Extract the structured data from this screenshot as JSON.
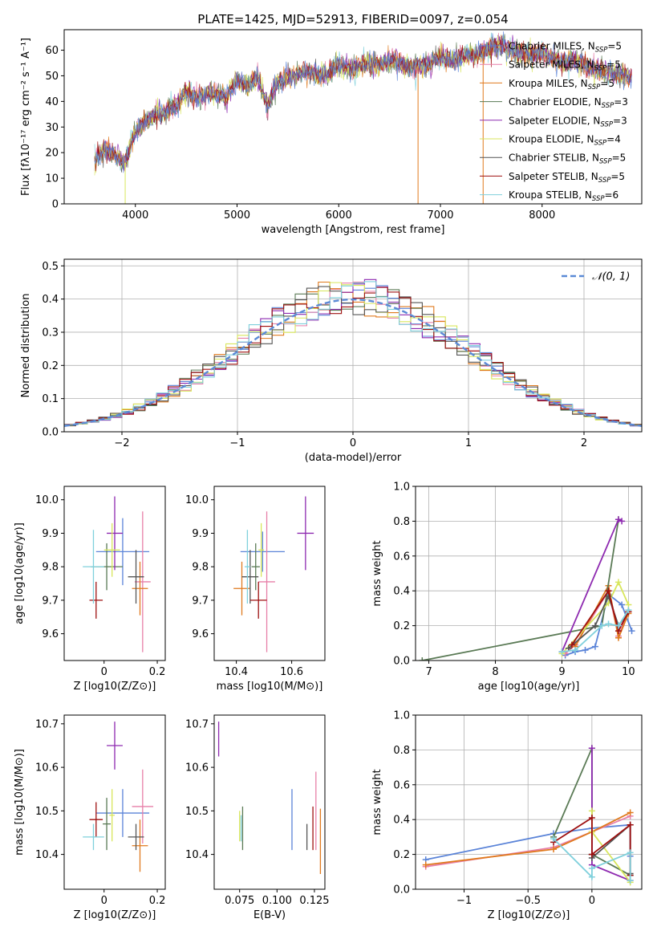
{
  "figure": {
    "title": "PLATE=1425, MJD=52913, FIBERID=0097, z=0.054"
  },
  "colors": {
    "Chabrier MILES": "#5b84d8",
    "Salpeter MILES": "#e77fa8",
    "Kroupa MILES": "#e07a1e",
    "Chabrier ELODIE": "#5a7a55",
    "Salpeter ELODIE": "#8e2ab0",
    "Kroupa ELODIE": "#d8e65c",
    "Chabrier STELIB": "#555555",
    "Salpeter STELIB": "#9e1010",
    "Kroupa STELIB": "#7fd0dc",
    "normal": "#5b8ad6"
  },
  "chart_data": [
    {
      "id": "spectrum",
      "type": "line",
      "xlabel": "wavelength [Angstrom, rest frame]",
      "ylabel": "Flux [fλ10⁻¹⁷ erg cm⁻² s⁻¹ A⁻¹]",
      "xlim": [
        3300,
        8980
      ],
      "ylim": [
        0,
        68
      ],
      "xticks": [
        4000,
        5000,
        6000,
        7000,
        8000
      ],
      "yticks": [
        0,
        10,
        20,
        30,
        40,
        50,
        60
      ],
      "grid": false,
      "legend_position": "top-right",
      "legend": [
        {
          "name": "Chabrier MILES",
          "nssp": "5"
        },
        {
          "name": "Salpeter MILES",
          "nssp": "5"
        },
        {
          "name": "Kroupa MILES",
          "nssp": "5"
        },
        {
          "name": "Chabrier ELODIE",
          "nssp": "3"
        },
        {
          "name": "Salpeter ELODIE",
          "nssp": "3"
        },
        {
          "name": "Kroupa ELODIE",
          "nssp": "4"
        },
        {
          "name": "Chabrier STELIB",
          "nssp": "5"
        },
        {
          "name": "Salpeter STELIB",
          "nssp": "5"
        },
        {
          "name": "Kroupa STELIB",
          "nssp": "6"
        }
      ],
      "x": [
        3600,
        3700,
        3800,
        3900,
        4000,
        4100,
        4200,
        4300,
        4400,
        4500,
        4600,
        4700,
        4800,
        4900,
        5000,
        5100,
        5200,
        5300,
        5400,
        5500,
        5600,
        5700,
        5800,
        5900,
        6000,
        6100,
        6200,
        6300,
        6400,
        6500,
        6600,
        6700,
        6800,
        6900,
        7000,
        7100,
        7200,
        7300,
        7400,
        7500,
        7600,
        7700,
        7800,
        7900,
        8000,
        8100,
        8200,
        8300,
        8400,
        8500,
        8600,
        8700,
        8800,
        8900
      ],
      "y": [
        16,
        22,
        19,
        16,
        28,
        32,
        35,
        36,
        38,
        44,
        41,
        43,
        43,
        42,
        48,
        46,
        50,
        38,
        48,
        49,
        51,
        52,
        50,
        51,
        55,
        53,
        54,
        55,
        54,
        56,
        55,
        53,
        54,
        55,
        57,
        56,
        57,
        58,
        59,
        61,
        62,
        60,
        59,
        58,
        59,
        57,
        55,
        56,
        54,
        53,
        52,
        51,
        50,
        49
      ],
      "sharp_dips": [
        3900,
        6780,
        7420
      ]
    },
    {
      "id": "residuals",
      "type": "bar",
      "xlabel": "(data-model)/error",
      "ylabel": "Normed distribution",
      "xlim": [
        -2.5,
        2.5
      ],
      "ylim": [
        0,
        0.52
      ],
      "xticks": [
        -2,
        -1,
        0,
        1,
        2
      ],
      "yticks": [
        0.0,
        0.1,
        0.2,
        0.3,
        0.4,
        0.5
      ],
      "grid": true,
      "legend_position": "top-right",
      "legend": [
        "𝒩(0, 1)"
      ],
      "bin_width": 0.1,
      "bins": [
        -2.5,
        -2.4,
        -2.3,
        -2.2,
        -2.1,
        -2.0,
        -1.9,
        -1.8,
        -1.7,
        -1.6,
        -1.5,
        -1.4,
        -1.3,
        -1.2,
        -1.1,
        -1.0,
        -0.9,
        -0.8,
        -0.7,
        -0.6,
        -0.5,
        -0.4,
        -0.3,
        -0.2,
        -0.1,
        0.0,
        0.1,
        0.2,
        0.3,
        0.4,
        0.5,
        0.6,
        0.7,
        0.8,
        0.9,
        1.0,
        1.1,
        1.2,
        1.3,
        1.4,
        1.5,
        1.6,
        1.7,
        1.8,
        1.9,
        2.0,
        2.1,
        2.2,
        2.3,
        2.4
      ],
      "normal_curve": {
        "mean": 0,
        "std": 1,
        "label": "N(0,1)"
      }
    },
    {
      "id": "age-vs-Z",
      "type": "scatter",
      "xlabel": "Z [log10(Z/Z⊙)]",
      "ylabel": "age  [log10(age/yr)]",
      "xlim": [
        -0.15,
        0.23
      ],
      "ylim": [
        9.52,
        10.04
      ],
      "xticks": [
        0.0,
        0.2
      ],
      "yticks": [
        9.6,
        9.7,
        9.8,
        9.9,
        10.0
      ],
      "grid": false,
      "points": [
        {
          "series": "Chabrier MILES",
          "x": 0.07,
          "y": 9.845,
          "xerr": 0.2,
          "yerr": 0.1
        },
        {
          "series": "Salpeter MILES",
          "x": 0.145,
          "y": 9.755,
          "xerr": 0.06,
          "yerr": 0.21
        },
        {
          "series": "Kroupa MILES",
          "x": 0.135,
          "y": 9.735,
          "xerr": 0.06,
          "yerr": 0.08
        },
        {
          "series": "Chabrier ELODIE",
          "x": 0.01,
          "y": 9.8,
          "xerr": 0.12,
          "yerr": 0.07
        },
        {
          "series": "Salpeter ELODIE",
          "x": 0.04,
          "y": 9.9,
          "xerr": 0.06,
          "yerr": 0.11
        },
        {
          "series": "Kroupa ELODIE",
          "x": 0.03,
          "y": 9.85,
          "xerr": 0.06,
          "yerr": 0.08
        },
        {
          "series": "Chabrier STELIB",
          "x": 0.12,
          "y": 9.77,
          "xerr": 0.06,
          "yerr": 0.08
        },
        {
          "series": "Salpeter STELIB",
          "x": -0.03,
          "y": 9.7,
          "xerr": 0.05,
          "yerr": 0.055
        },
        {
          "series": "Kroupa STELIB",
          "x": -0.04,
          "y": 9.8,
          "xerr": 0.08,
          "yerr": 0.11
        }
      ]
    },
    {
      "id": "age-vs-mass",
      "type": "scatter",
      "xlabel": "mass [log10(M/M⊙)]",
      "ylabel": "",
      "xlim": [
        10.32,
        10.72
      ],
      "ylim": [
        9.52,
        10.04
      ],
      "xticks": [
        10.4,
        10.6
      ],
      "yticks": [
        9.6,
        9.7,
        9.8,
        9.9,
        10.0
      ],
      "grid": false,
      "points": [
        {
          "series": "Chabrier MILES",
          "x": 10.495,
          "y": 9.845,
          "xerr": 0.16,
          "yerr": 0.06
        },
        {
          "series": "Salpeter MILES",
          "x": 10.51,
          "y": 9.755,
          "xerr": 0.06,
          "yerr": 0.21
        },
        {
          "series": "Kroupa MILES",
          "x": 10.42,
          "y": 9.735,
          "xerr": 0.06,
          "yerr": 0.08
        },
        {
          "series": "Chabrier ELODIE",
          "x": 10.47,
          "y": 9.8,
          "xerr": 0.03,
          "yerr": 0.07
        },
        {
          "series": "Salpeter ELODIE",
          "x": 10.65,
          "y": 9.9,
          "xerr": 0.06,
          "yerr": 0.11
        },
        {
          "series": "Kroupa ELODIE",
          "x": 10.49,
          "y": 9.85,
          "xerr": 0.02,
          "yerr": 0.08
        },
        {
          "series": "Chabrier STELIB",
          "x": 10.45,
          "y": 9.77,
          "xerr": 0.06,
          "yerr": 0.08
        },
        {
          "series": "Salpeter STELIB",
          "x": 10.48,
          "y": 9.7,
          "xerr": 0.06,
          "yerr": 0.055
        },
        {
          "series": "Kroupa STELIB",
          "x": 10.44,
          "y": 9.8,
          "xerr": 0.02,
          "yerr": 0.11
        }
      ]
    },
    {
      "id": "weight-vs-age",
      "type": "line",
      "xlabel": "age  [log10(age/yr)]",
      "ylabel": "mass weight",
      "xlim": [
        6.8,
        10.2
      ],
      "ylim": [
        0,
        1.0
      ],
      "xticks": [
        7,
        8,
        9,
        10
      ],
      "yticks": [
        0.0,
        0.2,
        0.4,
        0.6,
        0.8,
        1.0
      ],
      "grid": true,
      "series": [
        {
          "name": "Chabrier MILES",
          "x": [
            9.05,
            9.2,
            9.35,
            9.5,
            9.7,
            9.9,
            10.05
          ],
          "y": [
            0.03,
            0.05,
            0.06,
            0.08,
            0.38,
            0.32,
            0.17
          ]
        },
        {
          "name": "Salpeter MILES",
          "x": [
            9.05,
            9.2,
            9.7,
            9.85,
            10.0
          ],
          "y": [
            0.04,
            0.09,
            0.4,
            0.14,
            0.28
          ]
        },
        {
          "name": "Kroupa MILES",
          "x": [
            9.2,
            9.7,
            9.85,
            10.0
          ],
          "y": [
            0.08,
            0.43,
            0.13,
            0.27
          ]
        },
        {
          "name": "Chabrier ELODIE",
          "x": [
            6.9,
            9.6,
            9.85
          ],
          "y": [
            0.0,
            0.2,
            0.81
          ]
        },
        {
          "name": "Salpeter ELODIE",
          "x": [
            9.0,
            9.85,
            9.9
          ],
          "y": [
            0.05,
            0.81,
            0.8
          ]
        },
        {
          "name": "Kroupa ELODIE",
          "x": [
            9.0,
            9.7,
            9.85,
            10.0
          ],
          "y": [
            0.04,
            0.33,
            0.45,
            0.32
          ]
        },
        {
          "name": "Chabrier STELIB",
          "x": [
            9.1,
            9.5,
            9.7,
            9.85,
            10.0
          ],
          "y": [
            0.07,
            0.2,
            0.37,
            0.2,
            0.28
          ]
        },
        {
          "name": "Salpeter STELIB",
          "x": [
            9.15,
            9.7,
            9.85,
            10.0
          ],
          "y": [
            0.09,
            0.4,
            0.17,
            0.28
          ]
        },
        {
          "name": "Kroupa STELIB",
          "x": [
            9.0,
            9.2,
            9.6,
            9.7,
            9.85,
            10.0
          ],
          "y": [
            0.05,
            0.06,
            0.2,
            0.21,
            0.2,
            0.29
          ]
        }
      ]
    },
    {
      "id": "mass-vs-Z",
      "type": "scatter",
      "xlabel": "Z [log10(Z/Z⊙)]",
      "ylabel": "mass [log10(M/M⊙)]",
      "xlim": [
        -0.15,
        0.23
      ],
      "ylim": [
        10.32,
        10.72
      ],
      "xticks": [
        0.0,
        0.2
      ],
      "yticks": [
        10.4,
        10.5,
        10.6,
        10.7
      ],
      "grid": false,
      "points": [
        {
          "series": "Chabrier MILES",
          "x": 0.07,
          "y": 10.495,
          "xerr": 0.2,
          "yerr": 0.055
        },
        {
          "series": "Salpeter MILES",
          "x": 0.145,
          "y": 10.51,
          "xerr": 0.08,
          "yerr": 0.085
        },
        {
          "series": "Kroupa MILES",
          "x": 0.135,
          "y": 10.42,
          "xerr": 0.06,
          "yerr": 0.06
        },
        {
          "series": "Chabrier ELODIE",
          "x": 0.01,
          "y": 10.47,
          "xerr": 0.03,
          "yerr": 0.06
        },
        {
          "series": "Salpeter ELODIE",
          "x": 0.04,
          "y": 10.65,
          "xerr": 0.06,
          "yerr": 0.055
        },
        {
          "series": "Kroupa ELODIE",
          "x": 0.03,
          "y": 10.49,
          "xerr": 0.02,
          "yerr": 0.06
        },
        {
          "series": "Chabrier STELIB",
          "x": 0.12,
          "y": 10.44,
          "xerr": 0.06,
          "yerr": 0.03
        },
        {
          "series": "Salpeter STELIB",
          "x": -0.03,
          "y": 10.48,
          "xerr": 0.05,
          "yerr": 0.04
        },
        {
          "series": "Kroupa STELIB",
          "x": -0.04,
          "y": 10.44,
          "xerr": 0.08,
          "yerr": 0.03
        }
      ]
    },
    {
      "id": "mass-vs-EBV",
      "type": "scatter",
      "xlabel": "E(B-V)",
      "ylabel": "",
      "xlim": [
        0.058,
        0.132
      ],
      "ylim": [
        10.32,
        10.72
      ],
      "xticks": [
        0.075,
        0.1,
        0.125
      ],
      "xticklabels": [
        "0.075",
        "0.100",
        "0.125"
      ],
      "yticks": [
        10.4,
        10.5,
        10.6,
        10.7
      ],
      "grid": false,
      "points": [
        {
          "series": "Chabrier MILES",
          "x": 0.11,
          "y": 10.48,
          "xerr": 0,
          "yerr": 0.07
        },
        {
          "series": "Salpeter MILES",
          "x": 0.126,
          "y": 10.5,
          "xerr": 0,
          "yerr": 0.09
        },
        {
          "series": "Kroupa MILES",
          "x": 0.129,
          "y": 10.43,
          "xerr": 0,
          "yerr": 0.075
        },
        {
          "series": "Chabrier ELODIE",
          "x": 0.077,
          "y": 10.46,
          "xerr": 0,
          "yerr": 0.05
        },
        {
          "series": "Salpeter ELODIE",
          "x": 0.061,
          "y": 10.665,
          "xerr": 0,
          "yerr": 0.04
        },
        {
          "series": "Kroupa ELODIE",
          "x": 0.075,
          "y": 10.465,
          "xerr": 0,
          "yerr": 0.035
        },
        {
          "series": "Chabrier STELIB",
          "x": 0.12,
          "y": 10.44,
          "xerr": 0,
          "yerr": 0.03
        },
        {
          "series": "Salpeter STELIB",
          "x": 0.124,
          "y": 10.46,
          "xerr": 0,
          "yerr": 0.05
        },
        {
          "series": "Kroupa STELIB",
          "x": 0.076,
          "y": 10.46,
          "xerr": 0,
          "yerr": 0.03
        }
      ]
    },
    {
      "id": "weight-vs-Z",
      "type": "line",
      "xlabel": "Z [log10(Z/Z⊙)]",
      "ylabel": "mass weight",
      "xlim": [
        -1.38,
        0.39
      ],
      "ylim": [
        0,
        1.0
      ],
      "xticks": [
        -1.0,
        -0.5,
        0.0
      ],
      "yticks": [
        0.0,
        0.2,
        0.4,
        0.6,
        0.8,
        1.0
      ],
      "grid": true,
      "series": [
        {
          "name": "Chabrier MILES",
          "x": [
            -1.3,
            -0.3,
            0.0,
            0.3,
            0.3
          ],
          "y": [
            0.17,
            0.32,
            0.35,
            0.37,
            0.19
          ]
        },
        {
          "name": "Salpeter MILES",
          "x": [
            -1.3,
            -0.3,
            0.0,
            0.3
          ],
          "y": [
            0.13,
            0.24,
            0.33,
            0.42
          ]
        },
        {
          "name": "Kroupa MILES",
          "x": [
            -1.3,
            -0.3,
            0.0,
            0.3
          ],
          "y": [
            0.14,
            0.23,
            0.33,
            0.44
          ]
        },
        {
          "name": "Chabrier ELODIE",
          "x": [
            -0.3,
            0.0,
            0.0,
            0.3
          ],
          "y": [
            0.3,
            0.81,
            0.2,
            0.08
          ]
        },
        {
          "name": "Salpeter ELODIE",
          "x": [
            0.0,
            0.0,
            0.3
          ],
          "y": [
            0.81,
            0.14,
            0.05
          ]
        },
        {
          "name": "Kroupa ELODIE",
          "x": [
            0.0,
            0.0,
            0.3
          ],
          "y": [
            0.45,
            0.33,
            0.04
          ]
        },
        {
          "name": "Chabrier STELIB",
          "x": [
            0.0,
            0.0,
            0.3,
            0.3
          ],
          "y": [
            0.2,
            0.18,
            0.37,
            0.09
          ]
        },
        {
          "name": "Salpeter STELIB",
          "x": [
            -0.3,
            0.0,
            0.0,
            0.3,
            0.3
          ],
          "y": [
            0.27,
            0.41,
            0.2,
            0.37,
            0.08
          ]
        },
        {
          "name": "Kroupa STELIB",
          "x": [
            -0.3,
            0.0,
            0.0,
            0.3,
            0.3
          ],
          "y": [
            0.29,
            0.07,
            0.12,
            0.21,
            0.05
          ]
        }
      ]
    }
  ]
}
